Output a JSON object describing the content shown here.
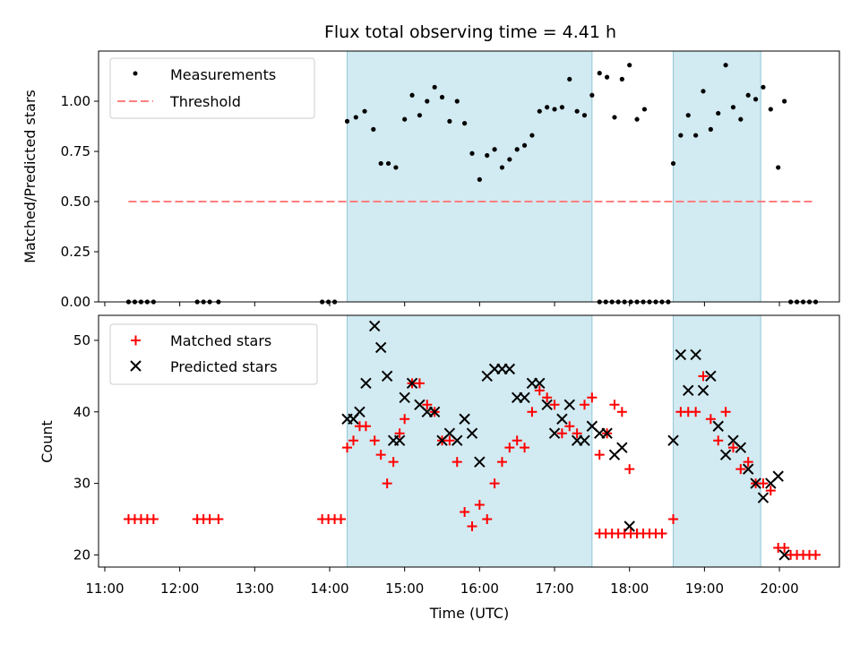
{
  "chart_data": {
    "title": "Flux total observing time = 4.41 h",
    "xlabel": "Time (UTC)",
    "x_ticks": [
      "11:00",
      "12:00",
      "13:00",
      "14:00",
      "15:00",
      "16:00",
      "17:00",
      "18:00",
      "19:00",
      "20:00"
    ],
    "x_range": [
      "10:55",
      "20:48"
    ],
    "shaded_intervals": [
      [
        "14:14",
        "17:30"
      ],
      [
        "18:35",
        "19:45"
      ]
    ],
    "shade_color": "#add8e6",
    "panels": [
      {
        "type": "scatter",
        "ylabel": "Matched/Predicted stars",
        "ylim": [
          0,
          1.25
        ],
        "y_ticks": [
          "0.00",
          "0.25",
          "0.50",
          "0.75",
          "1.00"
        ],
        "legend": {
          "position": "top-left",
          "entries": [
            "Measurements",
            "Threshold"
          ]
        },
        "series": [
          {
            "name": "Measurements",
            "marker": "dot",
            "color": "#000000",
            "points": [
              [
                "11:19",
                0
              ],
              [
                "11:24",
                0
              ],
              [
                "11:29",
                0
              ],
              [
                "11:34",
                0
              ],
              [
                "11:39",
                0
              ],
              [
                "12:14",
                0
              ],
              [
                "12:19",
                0
              ],
              [
                "12:24",
                0
              ],
              [
                "12:31",
                0
              ],
              [
                "13:54",
                0
              ],
              [
                "13:59",
                0
              ],
              [
                "14:04",
                0
              ],
              [
                "14:14",
                0.9
              ],
              [
                "14:21",
                0.92
              ],
              [
                "14:28",
                0.95
              ],
              [
                "14:35",
                0.86
              ],
              [
                "14:41",
                0.69
              ],
              [
                "14:47",
                0.69
              ],
              [
                "14:53",
                0.67
              ],
              [
                "15:00",
                0.91
              ],
              [
                "15:06",
                1.03
              ],
              [
                "15:12",
                0.93
              ],
              [
                "15:18",
                1.0
              ],
              [
                "15:24",
                1.07
              ],
              [
                "15:30",
                1.02
              ],
              [
                "15:36",
                0.9
              ],
              [
                "15:42",
                1.0
              ],
              [
                "15:48",
                0.89
              ],
              [
                "15:54",
                0.74
              ],
              [
                "16:00",
                0.61
              ],
              [
                "16:06",
                0.73
              ],
              [
                "16:12",
                0.76
              ],
              [
                "16:18",
                0.67
              ],
              [
                "16:24",
                0.71
              ],
              [
                "16:30",
                0.76
              ],
              [
                "16:36",
                0.78
              ],
              [
                "16:42",
                0.83
              ],
              [
                "16:48",
                0.95
              ],
              [
                "16:54",
                0.97
              ],
              [
                "17:00",
                0.96
              ],
              [
                "17:06",
                0.97
              ],
              [
                "17:12",
                1.11
              ],
              [
                "17:18",
                0.95
              ],
              [
                "17:24",
                0.93
              ],
              [
                "17:30",
                1.03
              ],
              [
                "17:36",
                1.14
              ],
              [
                "17:42",
                1.12
              ],
              [
                "17:48",
                0.92
              ],
              [
                "17:54",
                1.11
              ],
              [
                "18:00",
                1.18
              ],
              [
                "18:06",
                0.91
              ],
              [
                "18:12",
                0.96
              ],
              [
                "17:36",
                0
              ],
              [
                "17:41",
                0
              ],
              [
                "17:46",
                0
              ],
              [
                "17:51",
                0
              ],
              [
                "17:56",
                0
              ],
              [
                "18:01",
                0
              ],
              [
                "18:06",
                0
              ],
              [
                "18:11",
                0
              ],
              [
                "18:16",
                0
              ],
              [
                "18:21",
                0
              ],
              [
                "18:26",
                0
              ],
              [
                "18:31",
                0
              ],
              [
                "18:35",
                0.69
              ],
              [
                "18:41",
                0.83
              ],
              [
                "18:47",
                0.93
              ],
              [
                "18:53",
                0.83
              ],
              [
                "18:59",
                1.05
              ],
              [
                "19:05",
                0.86
              ],
              [
                "19:11",
                0.94
              ],
              [
                "19:17",
                1.18
              ],
              [
                "19:23",
                0.97
              ],
              [
                "19:29",
                0.91
              ],
              [
                "19:35",
                1.03
              ],
              [
                "19:41",
                1.01
              ],
              [
                "19:47",
                1.07
              ],
              [
                "19:53",
                0.96
              ],
              [
                "19:59",
                0.67
              ],
              [
                "20:04",
                1.0
              ],
              [
                "20:09",
                0
              ],
              [
                "20:14",
                0
              ],
              [
                "20:19",
                0
              ],
              [
                "20:24",
                0
              ],
              [
                "20:29",
                0
              ]
            ]
          },
          {
            "name": "Threshold",
            "marker": "dashed-line",
            "color": "#ff7f7f",
            "points": [
              [
                "11:19",
                0.5
              ],
              [
                "20:29",
                0.5
              ]
            ]
          }
        ]
      },
      {
        "type": "scatter",
        "ylabel": "Count",
        "ylim": [
          18.3,
          53.5
        ],
        "y_ticks": [
          "20",
          "30",
          "40",
          "50"
        ],
        "legend": {
          "position": "top-left",
          "entries": [
            "Matched stars",
            "Predicted stars"
          ]
        },
        "series": [
          {
            "name": "Matched stars",
            "marker": "plus",
            "color": "#ff0000",
            "points": [
              [
                "11:19",
                25
              ],
              [
                "11:24",
                25
              ],
              [
                "11:29",
                25
              ],
              [
                "11:34",
                25
              ],
              [
                "11:39",
                25
              ],
              [
                "12:14",
                25
              ],
              [
                "12:19",
                25
              ],
              [
                "12:24",
                25
              ],
              [
                "12:31",
                25
              ],
              [
                "13:54",
                25
              ],
              [
                "13:59",
                25
              ],
              [
                "14:04",
                25
              ],
              [
                "14:09",
                25
              ],
              [
                "14:14",
                35
              ],
              [
                "14:19",
                36
              ],
              [
                "14:24",
                38
              ],
              [
                "14:29",
                38
              ],
              [
                "14:36",
                36
              ],
              [
                "14:41",
                34
              ],
              [
                "14:46",
                30
              ],
              [
                "14:51",
                33
              ],
              [
                "14:56",
                37
              ],
              [
                "15:00",
                39
              ],
              [
                "15:06",
                44
              ],
              [
                "15:12",
                44
              ],
              [
                "15:18",
                41
              ],
              [
                "15:24",
                40
              ],
              [
                "15:30",
                36
              ],
              [
                "15:36",
                36
              ],
              [
                "15:42",
                33
              ],
              [
                "15:48",
                26
              ],
              [
                "15:54",
                24
              ],
              [
                "16:00",
                27
              ],
              [
                "16:06",
                25
              ],
              [
                "16:12",
                30
              ],
              [
                "16:18",
                33
              ],
              [
                "16:24",
                35
              ],
              [
                "16:30",
                36
              ],
              [
                "16:36",
                35
              ],
              [
                "16:42",
                40
              ],
              [
                "16:48",
                43
              ],
              [
                "16:54",
                42
              ],
              [
                "17:00",
                41
              ],
              [
                "17:06",
                37
              ],
              [
                "17:12",
                38
              ],
              [
                "17:18",
                37
              ],
              [
                "17:24",
                41
              ],
              [
                "17:30",
                42
              ],
              [
                "17:36",
                34
              ],
              [
                "17:42",
                37
              ],
              [
                "17:48",
                41
              ],
              [
                "17:54",
                40
              ],
              [
                "18:00",
                32
              ],
              [
                "18:06",
                23
              ],
              [
                "17:36",
                23
              ],
              [
                "17:41",
                23
              ],
              [
                "17:46",
                23
              ],
              [
                "17:51",
                23
              ],
              [
                "17:56",
                23
              ],
              [
                "18:01",
                23
              ],
              [
                "18:06",
                23
              ],
              [
                "18:11",
                23
              ],
              [
                "18:16",
                23
              ],
              [
                "18:21",
                23
              ],
              [
                "18:26",
                23
              ],
              [
                "18:35",
                25
              ],
              [
                "18:41",
                40
              ],
              [
                "18:47",
                40
              ],
              [
                "18:53",
                40
              ],
              [
                "18:59",
                45
              ],
              [
                "19:05",
                39
              ],
              [
                "19:11",
                36
              ],
              [
                "19:17",
                40
              ],
              [
                "19:23",
                35
              ],
              [
                "19:29",
                32
              ],
              [
                "19:35",
                33
              ],
              [
                "19:41",
                30
              ],
              [
                "19:47",
                30
              ],
              [
                "19:53",
                29
              ],
              [
                "19:59",
                21
              ],
              [
                "20:04",
                21
              ],
              [
                "20:09",
                20
              ],
              [
                "20:14",
                20
              ],
              [
                "20:19",
                20
              ],
              [
                "20:24",
                20
              ],
              [
                "20:29",
                20
              ]
            ]
          },
          {
            "name": "Predicted stars",
            "marker": "x",
            "color": "#000000",
            "points": [
              [
                "14:14",
                39
              ],
              [
                "14:19",
                39
              ],
              [
                "14:24",
                40
              ],
              [
                "14:29",
                44
              ],
              [
                "14:36",
                52
              ],
              [
                "14:41",
                49
              ],
              [
                "14:46",
                45
              ],
              [
                "14:51",
                36
              ],
              [
                "14:56",
                36
              ],
              [
                "15:00",
                42
              ],
              [
                "15:06",
                44
              ],
              [
                "15:12",
                41
              ],
              [
                "15:18",
                40
              ],
              [
                "15:24",
                40
              ],
              [
                "15:30",
                36
              ],
              [
                "15:36",
                37
              ],
              [
                "15:42",
                36
              ],
              [
                "15:48",
                39
              ],
              [
                "15:54",
                37
              ],
              [
                "16:00",
                33
              ],
              [
                "16:06",
                45
              ],
              [
                "16:12",
                46
              ],
              [
                "16:18",
                46
              ],
              [
                "16:24",
                46
              ],
              [
                "16:30",
                42
              ],
              [
                "16:36",
                42
              ],
              [
                "16:42",
                44
              ],
              [
                "16:48",
                44
              ],
              [
                "16:54",
                41
              ],
              [
                "17:00",
                37
              ],
              [
                "17:06",
                39
              ],
              [
                "17:12",
                41
              ],
              [
                "17:18",
                36
              ],
              [
                "17:24",
                36
              ],
              [
                "17:30",
                38
              ],
              [
                "17:36",
                37
              ],
              [
                "17:42",
                37
              ],
              [
                "17:48",
                34
              ],
              [
                "17:54",
                35
              ],
              [
                "18:00",
                24
              ],
              [
                "18:35",
                36
              ],
              [
                "18:41",
                48
              ],
              [
                "18:47",
                43
              ],
              [
                "18:53",
                48
              ],
              [
                "18:59",
                43
              ],
              [
                "19:05",
                45
              ],
              [
                "19:11",
                38
              ],
              [
                "19:17",
                34
              ],
              [
                "19:23",
                36
              ],
              [
                "19:29",
                35
              ],
              [
                "19:35",
                32
              ],
              [
                "19:41",
                30
              ],
              [
                "19:47",
                28
              ],
              [
                "19:53",
                30
              ],
              [
                "19:59",
                31
              ],
              [
                "20:04",
                20
              ]
            ]
          }
        ]
      }
    ]
  }
}
